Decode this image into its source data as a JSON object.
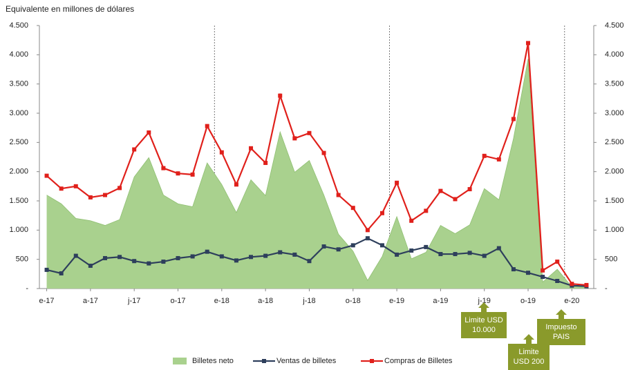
{
  "chart_data": {
    "type": "line",
    "title": "Equivalente en millones de dólares",
    "categories": [
      "e-17",
      null,
      null,
      "a-17",
      null,
      null,
      "j-17",
      null,
      null,
      "o-17",
      null,
      null,
      "e-18",
      null,
      null,
      "a-18",
      null,
      null,
      "j-18",
      null,
      null,
      "o-18",
      null,
      null,
      "e-19",
      null,
      null,
      "a-19",
      null,
      null,
      "j-19",
      null,
      null,
      "o-19",
      null,
      null,
      "e-20",
      null
    ],
    "series": [
      {
        "name": "Billetes neto",
        "kind": "area",
        "color": "#a9d18e",
        "values": [
          1600,
          1450,
          1200,
          1160,
          1080,
          1180,
          1910,
          2240,
          1600,
          1450,
          1400,
          2150,
          1780,
          1300,
          1860,
          1590,
          2680,
          1990,
          2190,
          1600,
          930,
          640,
          140,
          550,
          1230,
          510,
          620,
          1080,
          940,
          1090,
          1710,
          1520,
          2570,
          3930,
          110,
          330,
          30,
          20
        ]
      },
      {
        "name": "Ventas de billetes",
        "kind": "line",
        "color": "#2e3f5c",
        "values": [
          320,
          260,
          560,
          390,
          520,
          540,
          470,
          430,
          460,
          520,
          550,
          630,
          550,
          480,
          540,
          560,
          620,
          580,
          470,
          720,
          670,
          740,
          860,
          740,
          580,
          650,
          710,
          590,
          590,
          610,
          560,
          690,
          330,
          270,
          200,
          130,
          50,
          40
        ]
      },
      {
        "name": "Compras de Billetes",
        "kind": "line",
        "color": "#e0201b",
        "values": [
          1930,
          1710,
          1750,
          1560,
          1600,
          1720,
          2380,
          2670,
          2060,
          1970,
          1950,
          2780,
          2330,
          1780,
          2400,
          2150,
          3300,
          2570,
          2660,
          2320,
          1600,
          1380,
          1000,
          1290,
          1810,
          1160,
          1330,
          1670,
          1530,
          1700,
          2270,
          2210,
          2900,
          4200,
          310,
          460,
          80,
          60
        ]
      }
    ],
    "ylim": [
      0,
      4500
    ],
    "yticks": [
      {
        "value": 0,
        "label": "-"
      },
      500,
      {
        "value": 1000,
        "label": "1.000"
      },
      {
        "value": 1500,
        "label": "1.500"
      },
      {
        "value": 2000,
        "label": "2.000"
      },
      {
        "value": 2500,
        "label": "2.500"
      },
      {
        "value": 3000,
        "label": "3.000"
      },
      {
        "value": 3500,
        "label": "3.500"
      },
      {
        "value": 4000,
        "label": "4.000"
      },
      {
        "value": 4500,
        "label": "4.500"
      }
    ],
    "y2lim": [
      0,
      4500
    ],
    "y2ticks": [
      {
        "value": 0,
        "label": "-"
      },
      500,
      {
        "value": 1000,
        "label": "1.000"
      },
      {
        "value": 1500,
        "label": "1.500"
      },
      {
        "value": 2000,
        "label": "2.000"
      },
      {
        "value": 2500,
        "label": "2.500"
      },
      {
        "value": 3000,
        "label": "3.000"
      },
      {
        "value": 3500,
        "label": "3.500"
      },
      {
        "value": 4000,
        "label": "4.000"
      },
      {
        "value": 4500,
        "label": "4.500"
      }
    ],
    "legend": "bottom",
    "annotations": [
      {
        "lines": [
          "Limite USD",
          "10.000"
        ]
      },
      {
        "lines": [
          "Limite",
          "USD 200"
        ]
      },
      {
        "lines": [
          "Impuesto",
          "PAIS"
        ]
      }
    ]
  }
}
